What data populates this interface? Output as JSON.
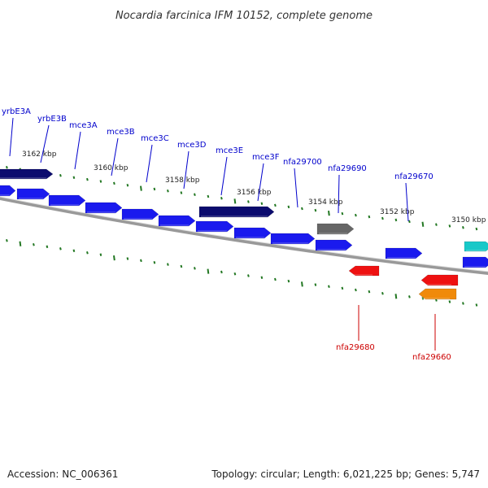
{
  "title": "Nocardia farcinica IFM 10152, complete genome",
  "footer": {
    "accession": "Accession: NC_006361",
    "info": "Topology: circular; Length: 6,021,225 bp; Genes: 5,747"
  },
  "colors": {
    "forward_gene": "#1a1aee",
    "forward_operon": "#0b0b6e",
    "hypothetical": "#666666",
    "reverse_gene": "#ee1111",
    "reverse_alt": "#f08a0a",
    "special_gene": "#18c8c8",
    "label_forward": "#0000cc",
    "label_reverse": "#cc0000",
    "tick": "#227722",
    "backbone": "#888888"
  },
  "ticks": [
    "3162 kbp",
    "3160 kbp",
    "3158 kbp",
    "3156 kbp",
    "3154 kbp",
    "3152 kbp",
    "3150 kbp"
  ],
  "forward_labels": [
    "yrbE3A",
    "yrbE3B",
    "mce3A",
    "mce3B",
    "mce3C",
    "mce3D",
    "mce3E",
    "mce3F",
    "nfa29700",
    "nfa29690",
    "nfa29670"
  ],
  "reverse_labels": [
    "nfa29680",
    "nfa29660"
  ]
}
